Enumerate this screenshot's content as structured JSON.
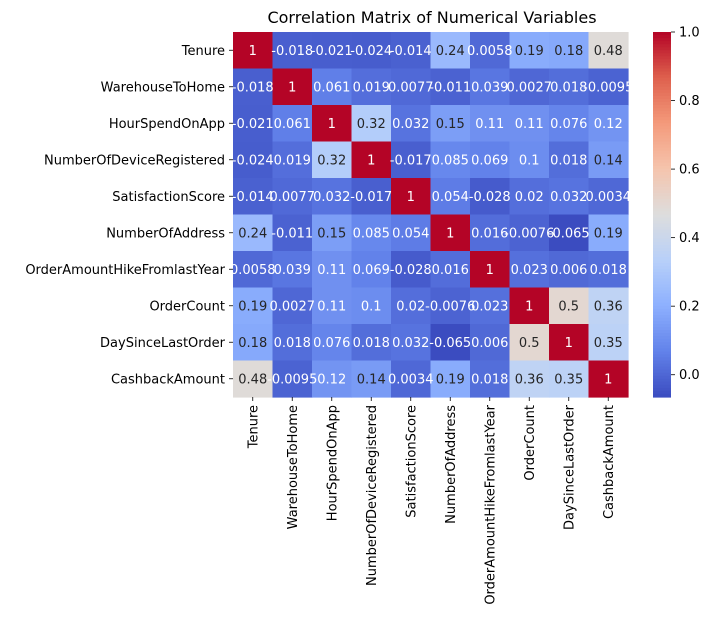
{
  "chart_data": {
    "type": "heatmap",
    "title": "Correlation Matrix of Numerical Variables",
    "variables": [
      "Tenure",
      "WarehouseToHome",
      "HourSpendOnApp",
      "NumberOfDeviceRegistered",
      "SatisfactionScore",
      "NumberOfAddress",
      "OrderAmountHikeFromlastYear",
      "OrderCount",
      "DaySinceLastOrder",
      "CashbackAmount"
    ],
    "values": [
      [
        1,
        -0.018,
        -0.021,
        -0.024,
        -0.014,
        0.24,
        0.0058,
        0.19,
        0.18,
        0.48
      ],
      [
        -0.018,
        1,
        0.061,
        0.019,
        0.0077,
        -0.011,
        0.039,
        0.0027,
        0.018,
        -0.0095
      ],
      [
        -0.021,
        0.061,
        1,
        0.32,
        0.032,
        0.15,
        0.11,
        0.11,
        0.076,
        0.12
      ],
      [
        -0.024,
        0.019,
        0.32,
        1,
        -0.017,
        0.085,
        0.069,
        0.1,
        0.018,
        0.14
      ],
      [
        -0.014,
        0.0077,
        0.032,
        -0.017,
        1,
        0.054,
        -0.028,
        0.02,
        0.032,
        0.0034
      ],
      [
        0.24,
        -0.011,
        0.15,
        0.085,
        0.054,
        1,
        0.016,
        -0.0076,
        -0.065,
        0.19
      ],
      [
        0.0058,
        0.039,
        0.11,
        0.069,
        -0.028,
        0.016,
        1,
        0.023,
        0.006,
        0.018
      ],
      [
        0.19,
        0.0027,
        0.11,
        0.1,
        0.02,
        -0.0076,
        0.023,
        1,
        0.5,
        0.36
      ],
      [
        0.18,
        0.018,
        0.076,
        0.018,
        0.032,
        -0.065,
        0.006,
        0.5,
        1,
        0.35
      ],
      [
        0.48,
        -0.0095,
        0.12,
        0.14,
        0.0034,
        0.19,
        0.018,
        0.36,
        0.35,
        1
      ]
    ],
    "labels": [
      [
        "1",
        "-0.018",
        "-0.021",
        "-0.024",
        "-0.014",
        "0.24",
        "0.0058",
        "0.19",
        "0.18",
        "0.48"
      ],
      [
        "-0.018",
        "1",
        "0.061",
        "0.019",
        "0.0077",
        "-0.011",
        "0.039",
        "0.0027",
        "0.018",
        "-0.0095"
      ],
      [
        "-0.021",
        "0.061",
        "1",
        "0.32",
        "0.032",
        "0.15",
        "0.11",
        "0.11",
        "0.076",
        "0.12"
      ],
      [
        "-0.024",
        "0.019",
        "0.32",
        "1",
        "-0.017",
        "0.085",
        "0.069",
        "0.1",
        "0.018",
        "0.14"
      ],
      [
        "-0.014",
        "0.0077",
        "0.032",
        "-0.017",
        "1",
        "0.054",
        "-0.028",
        "0.02",
        "0.032",
        "0.0034"
      ],
      [
        "0.24",
        "-0.011",
        "0.15",
        "0.085",
        "0.054",
        "1",
        "0.016",
        "-0.0076",
        "-0.065",
        "0.19"
      ],
      [
        "0.0058",
        "0.039",
        "0.11",
        "0.069",
        "-0.028",
        "0.016",
        "1",
        "0.023",
        "0.006",
        "0.018"
      ],
      [
        "0.19",
        "0.0027",
        "0.11",
        "0.1",
        "0.02",
        "-0.0076",
        "0.023",
        "1",
        "0.5",
        "0.36"
      ],
      [
        "0.18",
        "0.018",
        "0.076",
        "0.018",
        "0.032",
        "-0.065",
        "0.006",
        "0.5",
        "1",
        "0.35"
      ],
      [
        "0.48",
        "-0.0095",
        "0.12",
        "0.14",
        "0.0034",
        "0.19",
        "0.018",
        "0.36",
        "0.35",
        "1"
      ]
    ],
    "colormap": "coolwarm",
    "color_range": [
      -0.065,
      1.0
    ],
    "colorbar_ticks": [
      0.0,
      0.2,
      0.4,
      0.6,
      0.8,
      1.0
    ],
    "colorbar_tick_labels": [
      "0.0",
      "0.2",
      "0.4",
      "0.6",
      "0.8",
      "1.0"
    ]
  }
}
